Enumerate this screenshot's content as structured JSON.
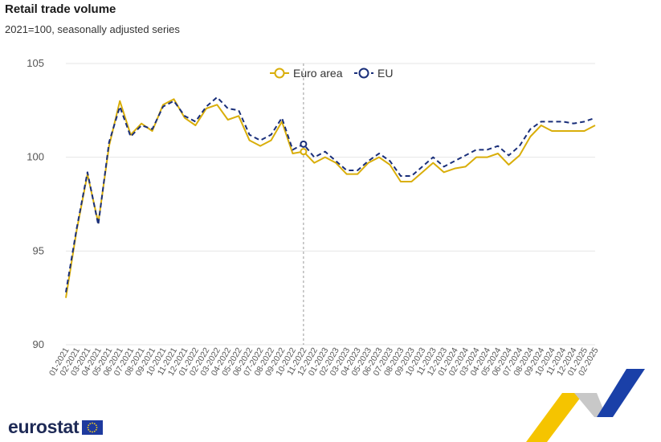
{
  "title": "Retail trade volume",
  "subtitle": "2021=100, seasonally adjusted series",
  "logo": {
    "text": "eurostat"
  },
  "colors": {
    "euro_area": "#d9ae0a",
    "eu": "#1a2f7a",
    "grid": "#e6e6e6",
    "marker_line": "#999999",
    "deco_yellow": "#f5c400",
    "deco_blue": "#1a40a8",
    "deco_grey": "#c8c8c8"
  },
  "chart_data": {
    "type": "line",
    "ylim": [
      90,
      105
    ],
    "yticks": [
      90,
      95,
      100,
      105
    ],
    "grid": true,
    "legend_position": "top-center",
    "highlighted_category": "11-2022",
    "categories": [
      "01-2021",
      "02-2021",
      "03-2021",
      "04-2021",
      "05-2021",
      "06-2021",
      "07-2021",
      "08-2021",
      "09-2021",
      "10-2021",
      "11-2021",
      "12-2021",
      "01-2022",
      "02-2022",
      "03-2022",
      "04-2022",
      "05-2022",
      "06-2022",
      "07-2022",
      "08-2022",
      "09-2022",
      "10-2022",
      "11-2022",
      "12-2022",
      "01-2023",
      "02-2023",
      "03-2023",
      "04-2023",
      "05-2023",
      "06-2023",
      "07-2023",
      "08-2023",
      "09-2023",
      "10-2023",
      "11-2023",
      "12-2023",
      "01-2024",
      "02-2024",
      "03-2024",
      "04-2024",
      "05-2024",
      "06-2024",
      "07-2024",
      "08-2024",
      "09-2024",
      "10-2024",
      "11-2024",
      "12-2024",
      "01-2025",
      "02-2025"
    ],
    "series": [
      {
        "name": "Euro area",
        "style": "solid",
        "values": [
          92.5,
          96.1,
          99.1,
          96.5,
          100.6,
          103.0,
          101.2,
          101.8,
          101.4,
          102.8,
          103.1,
          102.1,
          101.7,
          102.6,
          102.8,
          102.0,
          102.2,
          100.9,
          100.6,
          100.9,
          101.9,
          100.2,
          100.3,
          99.7,
          100.0,
          99.7,
          99.1,
          99.1,
          99.7,
          100.0,
          99.6,
          98.7,
          98.7,
          99.2,
          99.7,
          99.2,
          99.4,
          99.5,
          100.0,
          100.0,
          100.2,
          99.6,
          100.1,
          101.1,
          101.7,
          101.4,
          101.4,
          101.4,
          101.4,
          101.7
        ]
      },
      {
        "name": "EU",
        "style": "dashed",
        "values": [
          92.8,
          96.2,
          99.2,
          96.4,
          100.8,
          102.7,
          101.1,
          101.7,
          101.5,
          102.7,
          103.0,
          102.2,
          101.9,
          102.7,
          103.2,
          102.6,
          102.5,
          101.2,
          100.9,
          101.2,
          102.1,
          100.4,
          100.7,
          100.0,
          100.3,
          99.8,
          99.3,
          99.3,
          99.8,
          100.2,
          99.8,
          99.0,
          99.0,
          99.5,
          100.0,
          99.5,
          99.8,
          100.1,
          100.4,
          100.4,
          100.6,
          100.1,
          100.6,
          101.5,
          101.9,
          101.9,
          101.9,
          101.8,
          101.9,
          102.1
        ]
      }
    ]
  }
}
